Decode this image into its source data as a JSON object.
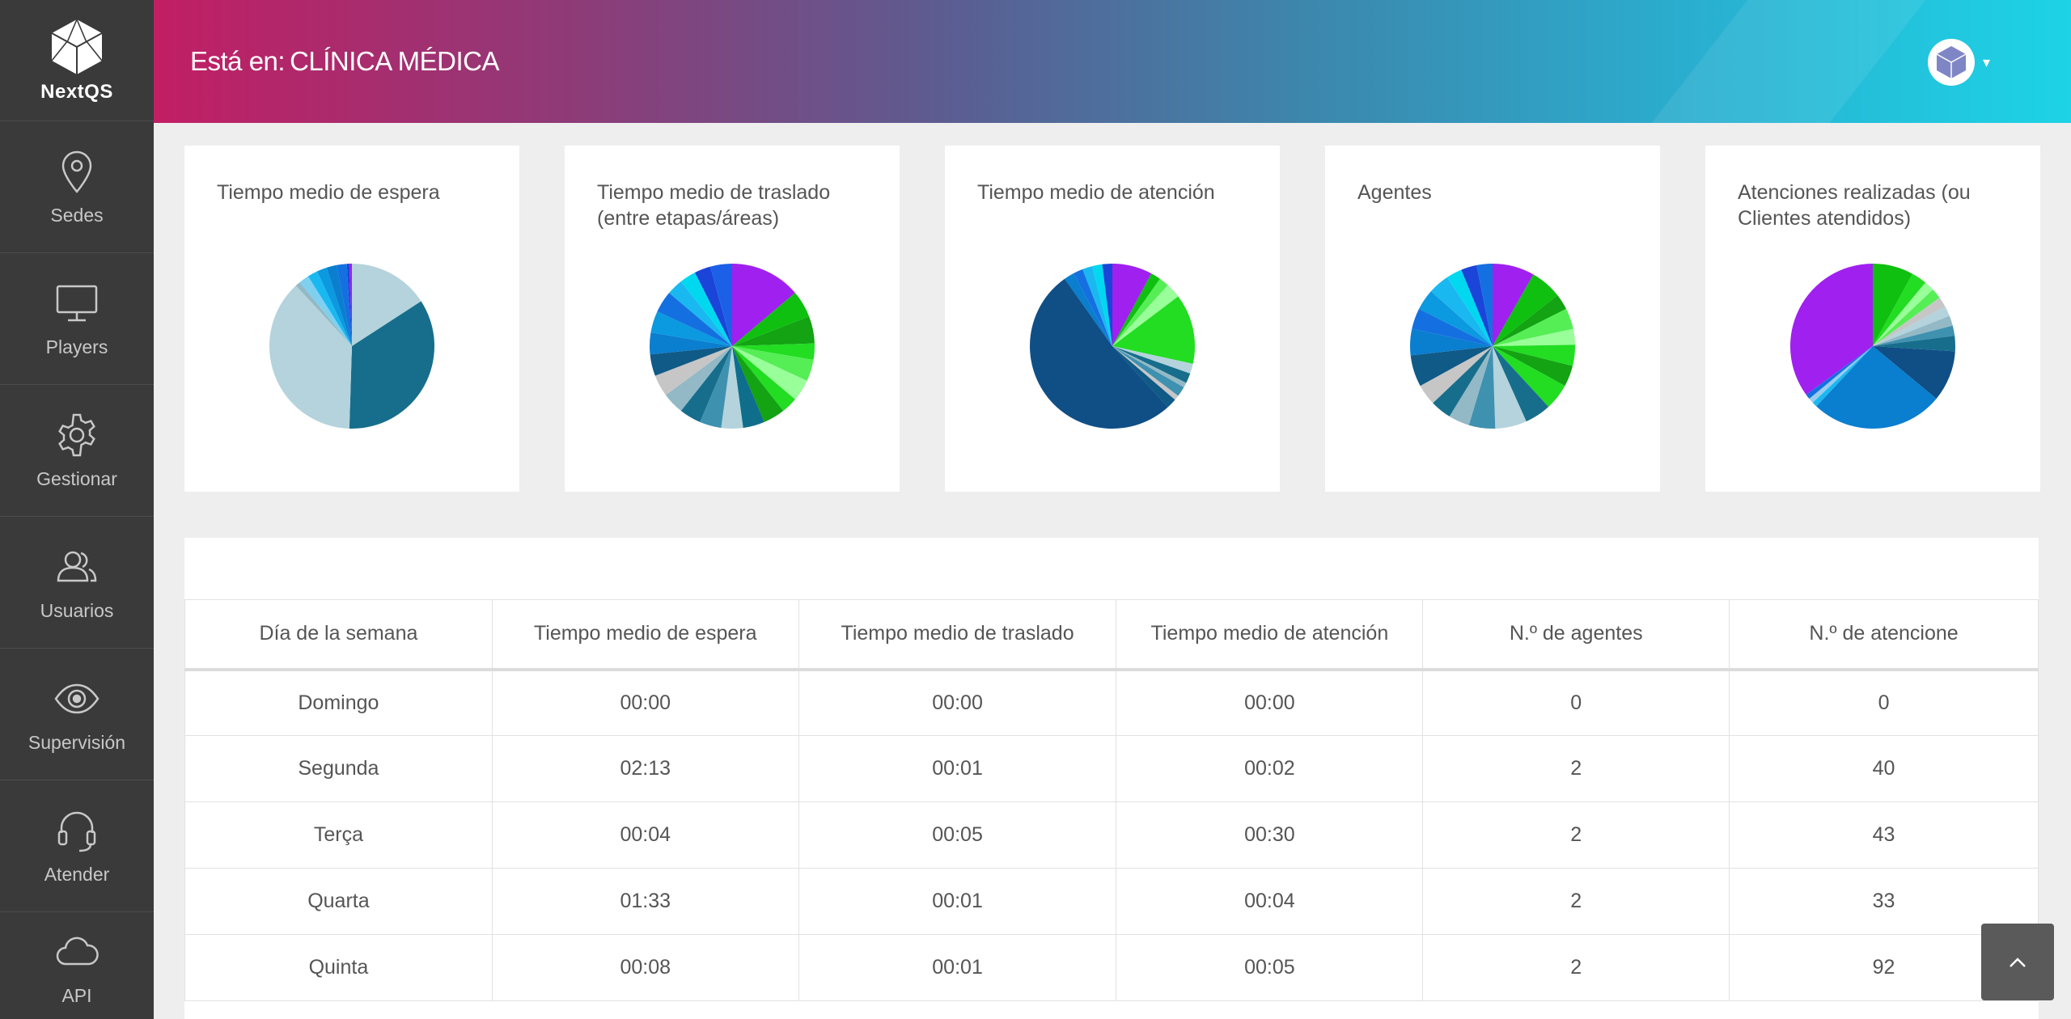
{
  "brand": {
    "name": "NextQS"
  },
  "sidebar": {
    "items": [
      {
        "label": "Sedes",
        "icon": "map-pin-icon"
      },
      {
        "label": "Players",
        "icon": "monitor-icon"
      },
      {
        "label": "Gestionar",
        "icon": "gear-icon"
      },
      {
        "label": "Usuarios",
        "icon": "users-icon"
      },
      {
        "label": "Supervisión",
        "icon": "eye-icon"
      },
      {
        "label": "Atender",
        "icon": "headset-icon"
      },
      {
        "label": "API",
        "icon": "cloud-icon"
      }
    ]
  },
  "header": {
    "prefix": "Está en:",
    "location": "CLÍNICA MÉDICA"
  },
  "palette": [
    "#b4d3dc",
    "#176e8c",
    "#93b9c6",
    "#3f91b0",
    "#c6c6c6",
    "#0f5a86",
    "#0a7ecf",
    "#0b99e0",
    "#1ab8f0",
    "#00d8f0",
    "#1470e0",
    "#1a45d8",
    "#a020f0",
    "#10c010",
    "#22dd22",
    "#55ee55",
    "#99ff99",
    "#13a313"
  ],
  "cards": [
    {
      "title": "Tiempo medio de espera",
      "chart_data": {
        "type": "pie",
        "values": [
          16,
          35,
          38,
          1,
          2,
          2,
          2,
          2,
          2,
          0.5,
          0.5
        ],
        "colors": [
          "#b4d3dc",
          "#176e8c",
          "#b4d3dc",
          "#93b9c6",
          "#7fd0f0",
          "#1ab8f0",
          "#0b99e0",
          "#0a7ecf",
          "#1470e0",
          "#1a45d8",
          "#a020f0"
        ]
      }
    },
    {
      "title": "Tiempo medio de traslado (entre etapas/áreas)",
      "chart_data": {
        "type": "pie",
        "values": [
          13,
          5,
          5,
          3,
          4,
          4,
          3,
          4,
          4,
          4,
          4,
          4,
          4,
          4,
          4,
          4,
          4,
          4,
          3,
          3,
          3,
          4
        ],
        "colors": [
          "#a020f0",
          "#10c010",
          "#13a313",
          "#22dd22",
          "#55ee55",
          "#99ff99",
          "#22dd22",
          "#13a313",
          "#0f6e8c",
          "#b4d3dc",
          "#3f91b0",
          "#176e8c",
          "#93b9c6",
          "#c6c6c6",
          "#0f5a86",
          "#0a7ecf",
          "#0b99e0",
          "#1470e0",
          "#1ab8f0",
          "#00d8f0",
          "#1a45d8",
          "#1c60e8"
        ]
      }
    },
    {
      "title": "Tiempo medio de atención",
      "chart_data": {
        "type": "pie",
        "values": [
          8,
          2,
          2,
          3,
          14,
          2,
          2,
          1,
          2,
          1,
          2,
          53,
          2,
          2,
          2,
          2,
          2
        ],
        "colors": [
          "#a020f0",
          "#10c010",
          "#55ee55",
          "#99ff99",
          "#22dd22",
          "#b4d3dc",
          "#176e8c",
          "#93b9c6",
          "#3f91b0",
          "#c6c6c6",
          "#0f5a86",
          "#0f4f86",
          "#0a7ecf",
          "#1470e0",
          "#1ab8f0",
          "#00d8f0",
          "#1a45d8"
        ]
      }
    },
    {
      "title": "Agentes",
      "chart_data": {
        "type": "pie",
        "values": [
          8,
          6,
          3,
          4,
          3,
          4,
          4,
          5,
          5,
          6,
          5,
          4,
          4,
          4,
          6,
          5,
          4,
          4,
          4,
          3,
          3,
          3
        ],
        "colors": [
          "#a020f0",
          "#10c010",
          "#13a313",
          "#55ee55",
          "#99ff99",
          "#22dd22",
          "#13a313",
          "#22dd22",
          "#176e8c",
          "#b4d3dc",
          "#3f91b0",
          "#93b9c6",
          "#176e8c",
          "#c6c6c6",
          "#0f5a86",
          "#0a7ecf",
          "#1470e0",
          "#0b99e0",
          "#1ab8f0",
          "#00d8f0",
          "#1a45d8",
          "#1470e0"
        ]
      }
    },
    {
      "title": "Atenciones realizadas (ou Clientes atendidos)",
      "chart_data": {
        "type": "pie",
        "values": [
          8,
          3,
          2,
          2,
          2,
          2,
          2,
          2,
          3,
          10,
          26,
          1,
          1,
          1,
          35
        ],
        "colors": [
          "#10c010",
          "#22dd22",
          "#99ff99",
          "#55ee55",
          "#c6c6c6",
          "#b4d3dc",
          "#93b9c6",
          "#3f91b0",
          "#176e8c",
          "#0f4f86",
          "#0a7ecf",
          "#1ab8f0",
          "#99ccee",
          "#1470e0",
          "#a020f0"
        ]
      }
    }
  ],
  "table": {
    "headers": [
      "Día de la semana",
      "Tiempo medio de espera",
      "Tiempo medio de traslado",
      "Tiempo medio de atención",
      "N.º de agentes",
      "N.º de atencione"
    ],
    "rows": [
      [
        "Domingo",
        "00:00",
        "00:00",
        "00:00",
        "0",
        "0"
      ],
      [
        "Segunda",
        "02:13",
        "00:01",
        "00:02",
        "2",
        "40"
      ],
      [
        "Terça",
        "00:04",
        "00:05",
        "00:30",
        "2",
        "43"
      ],
      [
        "Quarta",
        "01:33",
        "00:01",
        "00:04",
        "2",
        "33"
      ],
      [
        "Quinta",
        "00:08",
        "00:01",
        "00:05",
        "2",
        "92"
      ]
    ]
  }
}
